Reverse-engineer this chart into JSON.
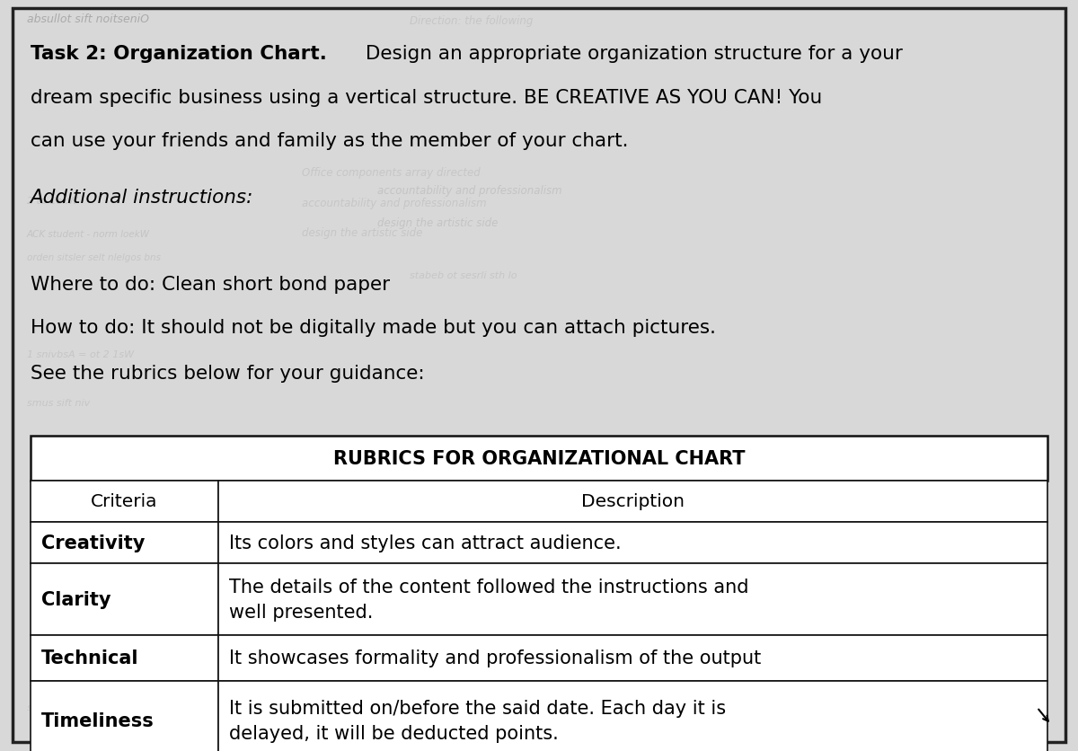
{
  "page_bg": "#d8d8d8",
  "watermark_top": "absullot sift noitseniO",
  "title_bold": "Task 2: Organization Chart.",
  "title_rest": " Design an appropriate organization structure for a your",
  "title_line2": "dream specific business using a vertical structure. BE CREATIVE AS YOU CAN! You",
  "title_line3": "can use your friends and family as the member of your chart.",
  "additional_label": "Additional instructions:",
  "where_to_do": "Where to do: Clean short bond paper",
  "how_to_do": "How to do: It should not be digitally made but you can attach pictures.",
  "see_rubrics": "See the rubrics below for your guidance:",
  "table_title": "RUBRICS FOR ORGANIZATIONAL CHART",
  "col1_header": "Criteria",
  "col2_header": "Description",
  "rows": [
    {
      "criteria": "Creativity",
      "description": "Its colors and styles can attract audience."
    },
    {
      "criteria": "Clarity",
      "description": "The details of the content followed the instructions and\nwell presented."
    },
    {
      "criteria": "Technical",
      "description": "It showcases formality and professionalism of the output"
    },
    {
      "criteria": "Timeliness",
      "description": "It is submitted on/before the said date. Each day it is\ndelayed, it will be deducted points."
    }
  ],
  "figsize": [
    12.0,
    8.37
  ],
  "dpi": 100,
  "font_size_main": 15.5,
  "font_size_table": 15.0,
  "font_size_watermark": 9
}
